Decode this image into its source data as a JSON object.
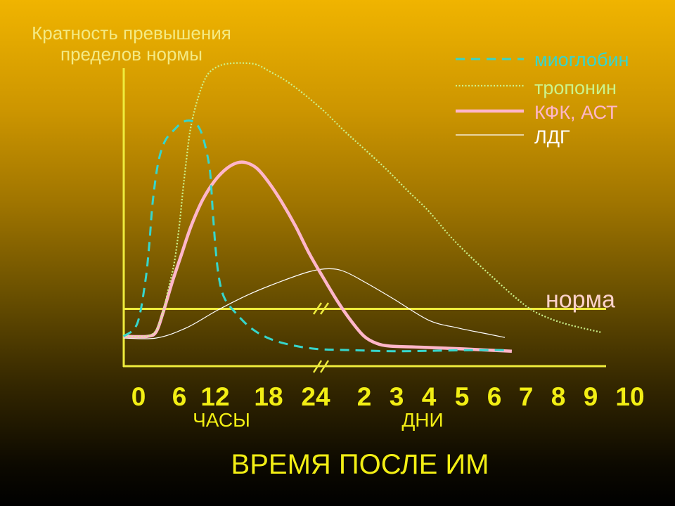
{
  "chart_data": {
    "type": "line",
    "ylabel": [
      "Кратность превышения",
      "пределов нормы"
    ],
    "xlabel": "ВРЕМЯ ПОСЛЕ ИМ",
    "x_axis": {
      "hours_ticks": [
        "0",
        "6",
        "12",
        "18",
        "24"
      ],
      "hours_label": "ЧАСЫ",
      "days_ticks": [
        "2",
        "3",
        "4",
        "5",
        "6",
        "7",
        "8",
        "9",
        "10"
      ],
      "days_label": "ДНИ"
    },
    "ylim": [
      0,
      5.2
    ],
    "grid": false,
    "legend": "top-right",
    "norm_line": {
      "label": "норма",
      "y": 1
    },
    "series": [
      {
        "name": "миоглобин",
        "color": "#36d6cc",
        "line_style": "dashed",
        "x": [
          -2.2,
          -0.2,
          1.0,
          1.6,
          2.1,
          2.9,
          3.9,
          5.3,
          6.6,
          8.0,
          9.2,
          10.1,
          11.1,
          11.6,
          12.1,
          12.5,
          13.1,
          14.3,
          15.9,
          17.8,
          20.5,
          24.3,
          41.7,
          70,
          101,
          132,
          153
        ],
        "y": [
          0.52,
          0.74,
          1.48,
          2.15,
          2.88,
          3.55,
          3.93,
          4.13,
          4.26,
          4.28,
          4.18,
          3.94,
          3.43,
          2.7,
          1.96,
          1.48,
          1.17,
          0.93,
          0.68,
          0.5,
          0.38,
          0.3,
          0.28,
          0.26,
          0.27,
          0.28,
          0.28
        ]
      },
      {
        "name": "тропонин",
        "color": "#ccf38a",
        "line_style": "dotted",
        "x": [
          -2.2,
          1.9,
          3.4,
          4.4,
          5.3,
          6.0,
          6.6,
          7.2,
          7.8,
          8.7,
          9.8,
          10.9,
          12.3,
          13.5,
          15.1,
          16.7,
          18.3,
          20.1,
          22.3,
          27.8,
          38.3,
          49.0,
          64.7,
          80.3,
          96,
          111.3,
          126.8,
          142.4,
          158.4,
          171.7,
          184.7,
          200.3,
          222.4
        ],
        "y": [
          0.52,
          0.55,
          0.87,
          1.35,
          1.83,
          2.45,
          3.06,
          3.61,
          4.1,
          4.52,
          4.89,
          5.11,
          5.23,
          5.28,
          5.29,
          5.26,
          5.13,
          4.99,
          4.77,
          4.46,
          4.1,
          3.77,
          3.43,
          3.06,
          2.7,
          2.27,
          1.9,
          1.56,
          1.23,
          0.99,
          0.84,
          0.72,
          0.59
        ]
      },
      {
        "name": "КФК, АСТ",
        "color": "#ffb6ca",
        "line_style": "solid",
        "x": [
          -2.2,
          1.3,
          2.6,
          3.6,
          5.0,
          6.4,
          8.0,
          9.9,
          11.9,
          13.3,
          14.5,
          15.5,
          16.7,
          18.0,
          19.6,
          21.4,
          23.2,
          27.8,
          34.8,
          41.7,
          48,
          56.9,
          67.3,
          90.8,
          121.6,
          157.3
        ],
        "y": [
          0.52,
          0.52,
          0.6,
          0.93,
          1.48,
          1.96,
          2.45,
          2.9,
          3.23,
          3.45,
          3.55,
          3.55,
          3.45,
          3.21,
          2.88,
          2.45,
          1.96,
          1.54,
          1.13,
          0.78,
          0.52,
          0.4,
          0.35,
          0.33,
          0.3,
          0.26
        ]
      },
      {
        "name": "ЛДГ",
        "color": "#ffffff",
        "line_style": "solid",
        "x": [
          -2.2,
          2.6,
          7.2,
          12.3,
          15.9,
          19.6,
          23.2,
          30.6,
          38.3,
          49.0,
          70,
          96,
          116.4,
          137.2,
          152.0
        ],
        "y": [
          0.49,
          0.49,
          0.67,
          0.98,
          1.26,
          1.48,
          1.65,
          1.7,
          1.65,
          1.46,
          1.17,
          0.8,
          0.67,
          0.57,
          0.5
        ]
      }
    ]
  }
}
